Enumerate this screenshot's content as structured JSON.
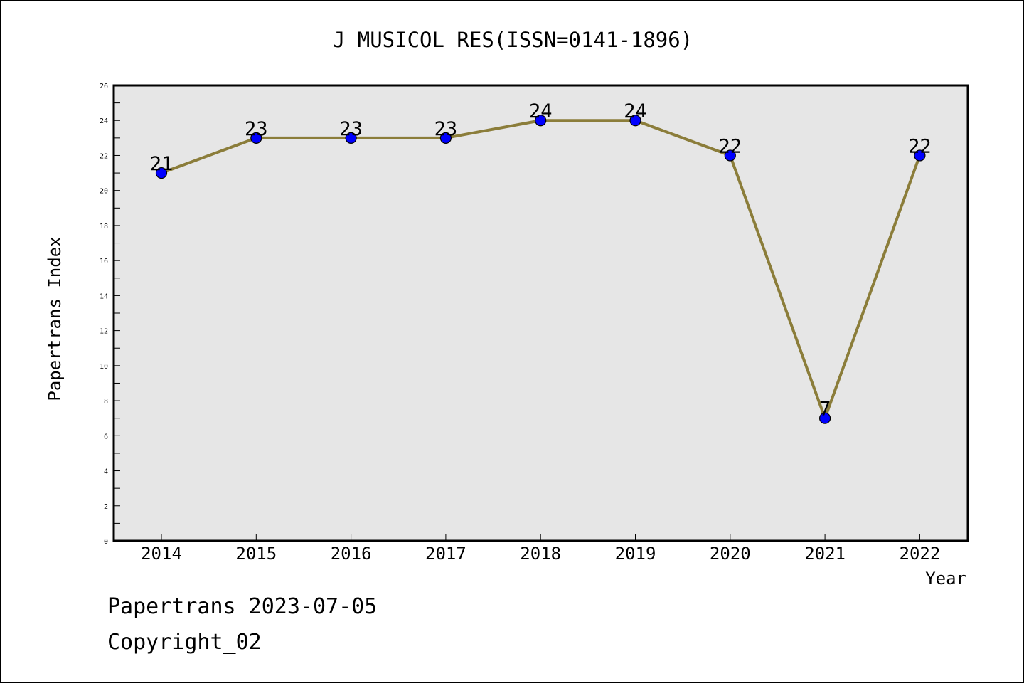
{
  "chart_data": {
    "type": "line",
    "title": "J MUSICOL RES(ISSN=0141-1896)",
    "xlabel": "Year",
    "ylabel": "Papertrans Index",
    "x": [
      "2014",
      "2015",
      "2016",
      "2017",
      "2018",
      "2019",
      "2020",
      "2021",
      "2022"
    ],
    "series": [
      {
        "values": [
          21,
          23,
          23,
          23,
          24,
          24,
          22,
          7,
          22
        ],
        "line_color": "#8b7d3a",
        "marker_color": "#0000ff"
      }
    ],
    "data_labels": [
      "21",
      "23",
      "23",
      "23",
      "24",
      "24",
      "22",
      "7",
      "22"
    ],
    "ylim": [
      0,
      26
    ],
    "y_ticks": [
      "0",
      "2",
      "4",
      "6",
      "8",
      "10",
      "12",
      "14",
      "16",
      "18",
      "20",
      "22",
      "24",
      "26"
    ],
    "grid": false,
    "plot_background": "#e6e6e6",
    "legend": "none"
  },
  "footer": {
    "line1": "Papertrans 2023-07-05",
    "line2": "Copyright_02"
  }
}
